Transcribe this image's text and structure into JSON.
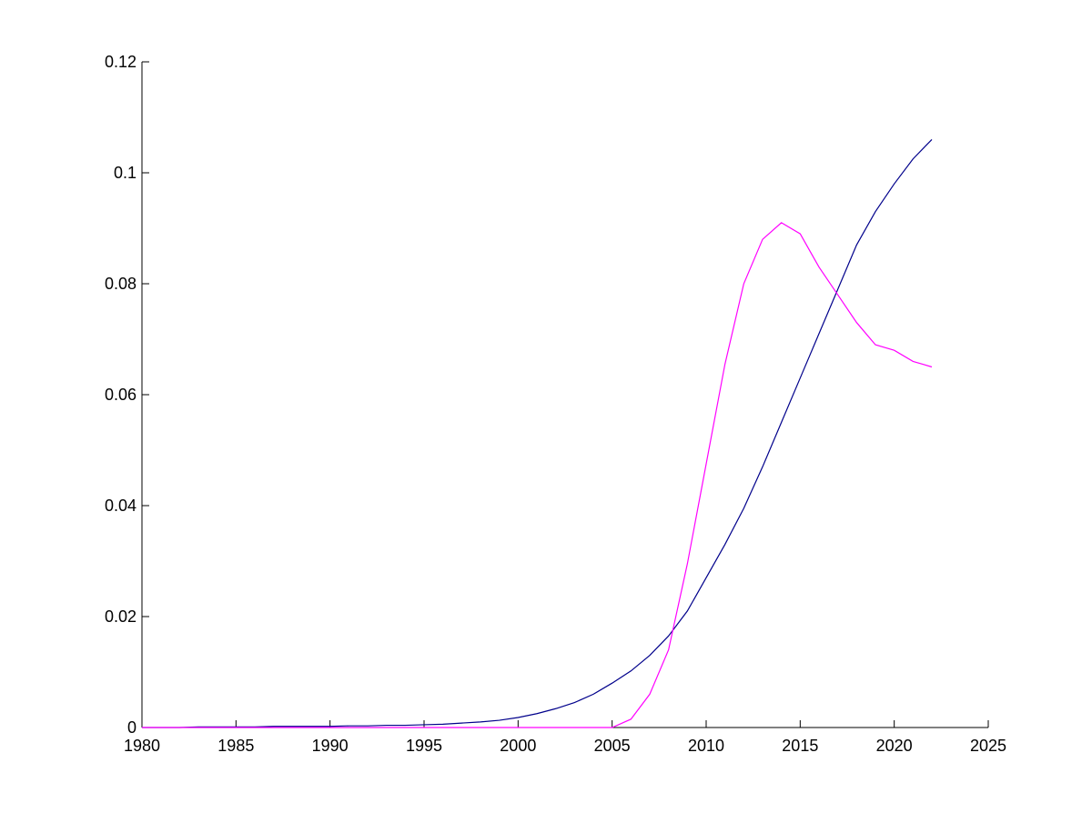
{
  "chart_data": {
    "type": "line",
    "x": [
      1980,
      1981,
      1982,
      1983,
      1984,
      1985,
      1986,
      1987,
      1988,
      1989,
      1990,
      1991,
      1992,
      1993,
      1994,
      1995,
      1996,
      1997,
      1998,
      1999,
      2000,
      2001,
      2002,
      2003,
      2004,
      2005,
      2006,
      2007,
      2008,
      2009,
      2010,
      2011,
      2012,
      2013,
      2014,
      2015,
      2016,
      2017,
      2018,
      2019,
      2020,
      2021,
      2022
    ],
    "series": [
      {
        "color": "#00008b",
        "values": [
          0,
          0,
          0,
          0.0001,
          0.0001,
          0.0001,
          0.0001,
          0.0002,
          0.0002,
          0.0002,
          0.0002,
          0.0003,
          0.0003,
          0.0004,
          0.0004,
          0.0005,
          0.0006,
          0.0008,
          0.001,
          0.0013,
          0.0018,
          0.0025,
          0.0034,
          0.0045,
          0.006,
          0.008,
          0.0102,
          0.013,
          0.0165,
          0.021,
          0.027,
          0.033,
          0.0395,
          0.047,
          0.055,
          0.063,
          0.071,
          0.079,
          0.087,
          0.093,
          0.098,
          0.1025,
          0.106
        ]
      },
      {
        "color": "#ff00ff",
        "values": [
          0,
          0,
          0,
          0,
          0,
          0,
          0,
          0,
          0,
          0,
          0,
          0,
          0,
          0,
          0,
          0,
          0,
          0,
          0,
          0,
          0,
          0,
          0,
          0,
          0,
          0,
          0.0015,
          0.006,
          0.014,
          0.0295,
          0.0475,
          0.0655,
          0.08,
          0.088,
          0.091,
          0.089,
          0.083,
          0.078,
          0.073,
          0.069,
          0.068,
          0.066,
          0.065
        ]
      }
    ],
    "xlim": [
      1980,
      2025
    ],
    "xticks": [
      1980,
      1985,
      1990,
      1995,
      2000,
      2005,
      2010,
      2015,
      2020,
      2025
    ],
    "ylim": [
      0,
      0.12
    ],
    "yticks": [
      0,
      0.02,
      0.04,
      0.06,
      0.08,
      0.1,
      0.12
    ]
  }
}
